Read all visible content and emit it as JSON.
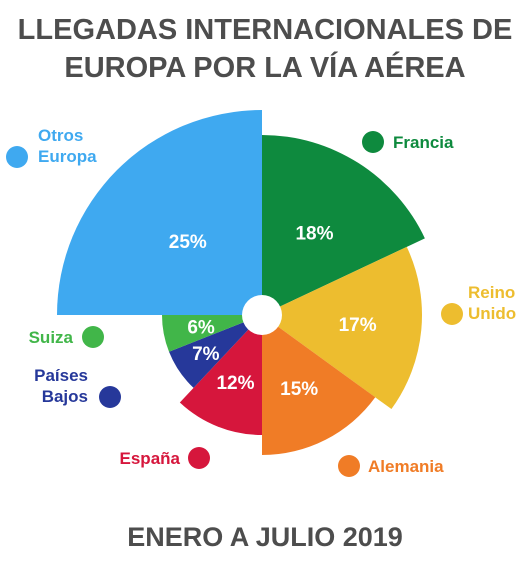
{
  "title_lines": [
    "LLEGADAS INTERNACIONALES DE",
    "EUROPA POR LA VÍA AÉREA"
  ],
  "subtitle": "ENERO A JULIO 2019",
  "chart_data": {
    "type": "pie",
    "title": "LLEGADAS INTERNACIONALES DE EUROPA POR LA VÍA AÉREA",
    "subtitle": "ENERO A JULIO 2019",
    "unit": "%",
    "slices": [
      {
        "label": "Francia",
        "label_lines": [
          "Francia"
        ],
        "value": 18,
        "display": "18%",
        "color": "#0e8a3e"
      },
      {
        "label": "Reino Unido",
        "label_lines": [
          "Reino",
          "Unido"
        ],
        "value": 17,
        "display": "17%",
        "color": "#edbd2f"
      },
      {
        "label": "Alemania",
        "label_lines": [
          "Alemania"
        ],
        "value": 15,
        "display": "15%",
        "color": "#f07c26"
      },
      {
        "label": "España",
        "label_lines": [
          "España"
        ],
        "value": 12,
        "display": "12%",
        "color": "#d6163c"
      },
      {
        "label": "Países Bajos",
        "label_lines": [
          "Países",
          "Bajos"
        ],
        "value": 7,
        "display": "7%",
        "color": "#26389a"
      },
      {
        "label": "Suiza",
        "label_lines": [
          "Suiza"
        ],
        "value": 6,
        "display": "6%",
        "color": "#41b649"
      },
      {
        "label": "Otros Europa",
        "label_lines": [
          "Otros",
          "Europa"
        ],
        "value": 25,
        "display": "25%",
        "color": "#3fa9f0"
      }
    ]
  }
}
